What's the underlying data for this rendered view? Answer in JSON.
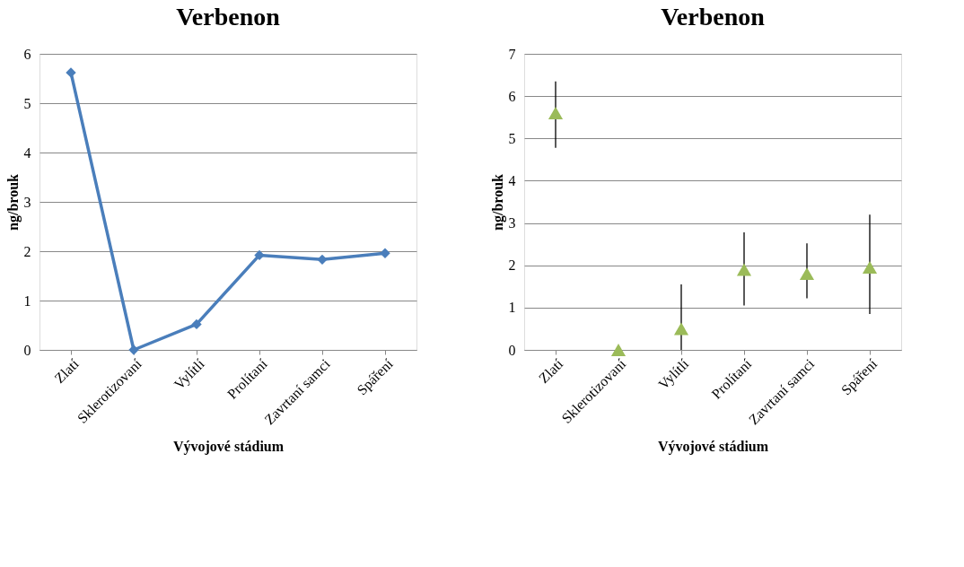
{
  "chart_data": [
    {
      "type": "line",
      "title": "Verbenon",
      "xlabel": "Vývojové stádium",
      "ylabel": "ng/brouk",
      "categories": [
        "Zlatí",
        "Sklerotizovaní",
        "Vylítlí",
        "Prolítaní",
        "Zavrtaní samci",
        "Spáření"
      ],
      "series": [
        {
          "color": "#4a7ebb",
          "values": [
            5.62,
            0.0,
            0.52,
            1.92,
            1.83,
            1.96
          ]
        }
      ],
      "ylim": [
        0,
        6
      ],
      "yticks": [
        0,
        1,
        2,
        3,
        4,
        5,
        6
      ],
      "grid": "y",
      "marker": "diamond",
      "line_style": "solid"
    },
    {
      "type": "scatter",
      "title": "Verbenon",
      "xlabel": "Vývojové stádium",
      "ylabel": "ng/brouk",
      "categories": [
        "Zlatí",
        "Sklerotizovaní",
        "Vylítlí",
        "Prolítaní",
        "Zavrtaní samci",
        "Spáření"
      ],
      "series": [
        {
          "color": "#9bbb59",
          "values": [
            5.6,
            0.0,
            0.5,
            1.9,
            1.8,
            1.95
          ],
          "errors": [
            [
              4.78,
              6.35
            ],
            null,
            [
              0.0,
              1.55
            ],
            [
              1.05,
              2.78
            ],
            [
              1.22,
              2.52
            ],
            [
              0.85,
              3.2
            ]
          ]
        }
      ],
      "ylim": [
        0,
        7
      ],
      "yticks": [
        0,
        1,
        2,
        3,
        4,
        5,
        6,
        7
      ],
      "grid": "y",
      "marker": "triangle"
    }
  ]
}
